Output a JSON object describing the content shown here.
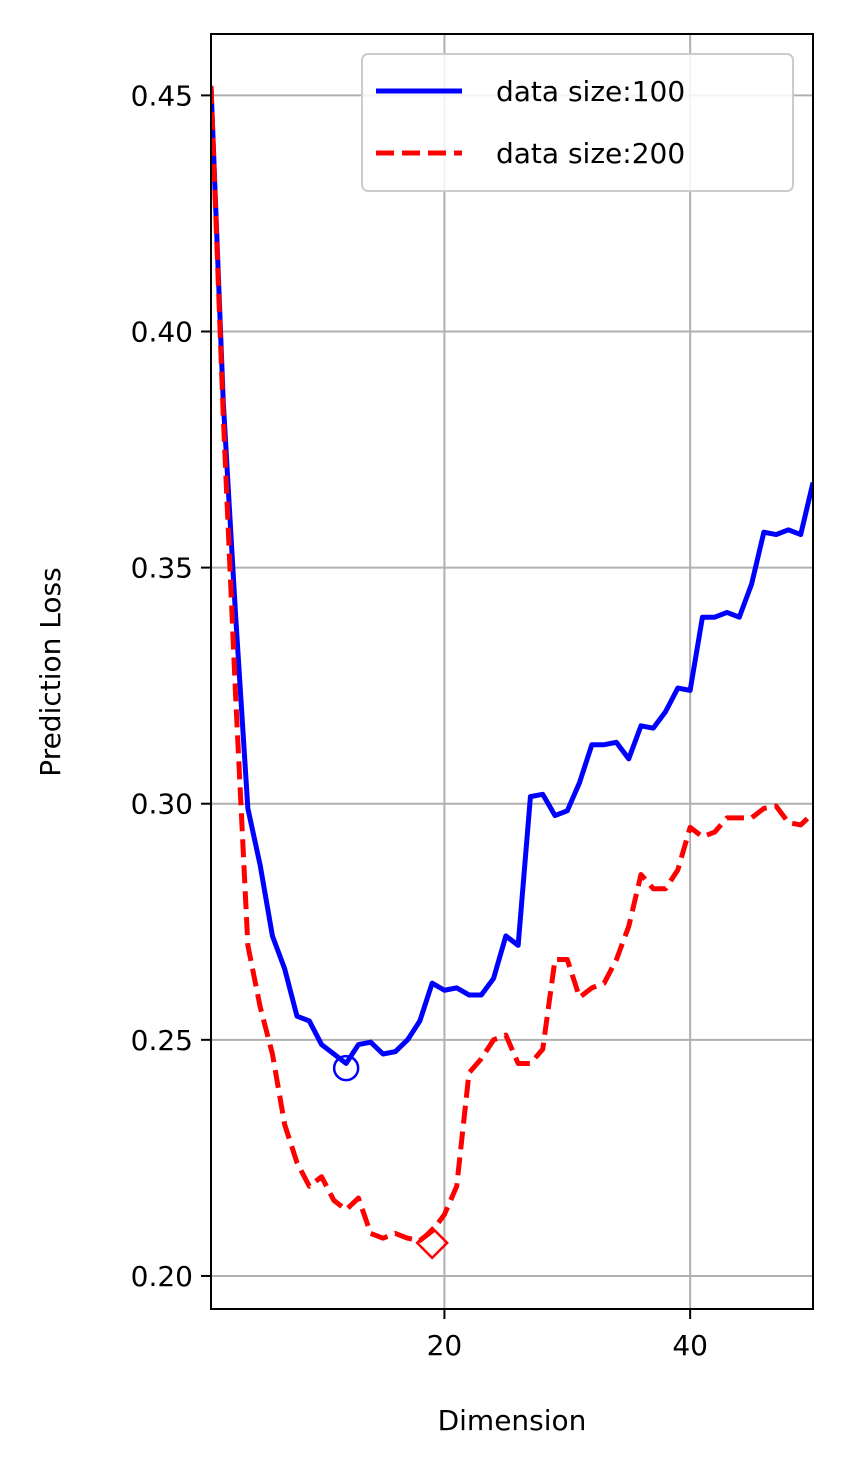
{
  "chart_data": {
    "type": "line",
    "xlabel": "Dimension",
    "ylabel": "Prediction Loss",
    "xlim": [
      1,
      50
    ],
    "ylim": [
      0.193,
      0.463
    ],
    "xticks": [
      20,
      40
    ],
    "xtick_labels": [
      "20",
      "40"
    ],
    "yticks": [
      0.2,
      0.25,
      0.3,
      0.35,
      0.4,
      0.45
    ],
    "ytick_labels": [
      "0.20",
      "0.25",
      "0.30",
      "0.35",
      "0.40",
      "0.45"
    ],
    "grid": true,
    "legend_position": "top-right",
    "series": [
      {
        "name": "data size:100",
        "color": "#0000ff",
        "style": "solid",
        "x": [
          1,
          2,
          3,
          4,
          5,
          6,
          7,
          8,
          9,
          10,
          11,
          12,
          13,
          14,
          15,
          16,
          17,
          18,
          19,
          20,
          21,
          22,
          23,
          24,
          25,
          26,
          27,
          28,
          29,
          30,
          31,
          32,
          33,
          34,
          35,
          36,
          37,
          38,
          39,
          40,
          41,
          42,
          43,
          44,
          45,
          46,
          47,
          48,
          49,
          50
        ],
        "y": [
          0.452,
          0.385,
          0.34,
          0.299,
          0.287,
          0.272,
          0.265,
          0.255,
          0.254,
          0.249,
          0.247,
          0.245,
          0.249,
          0.2495,
          0.247,
          0.2475,
          0.25,
          0.254,
          0.262,
          0.2605,
          0.261,
          0.2595,
          0.2595,
          0.263,
          0.272,
          0.27,
          0.3015,
          0.302,
          0.2975,
          0.2985,
          0.3045,
          0.3125,
          0.3125,
          0.313,
          0.3095,
          0.3165,
          0.316,
          0.3195,
          0.3245,
          0.324,
          0.3395,
          0.3395,
          0.3405,
          0.3395,
          0.3465,
          0.3575,
          0.357,
          0.358,
          0.357,
          0.368
        ],
        "marker": {
          "x": 12,
          "y": 0.244,
          "shape": "circle"
        }
      },
      {
        "name": "data size:200",
        "color": "#ff0000",
        "style": "dashed",
        "x": [
          1,
          2,
          3,
          4,
          5,
          6,
          7,
          8,
          9,
          10,
          11,
          12,
          13,
          14,
          15,
          16,
          17,
          18,
          19,
          20,
          21,
          22,
          23,
          24,
          25,
          26,
          27,
          28,
          29,
          30,
          31,
          32,
          33,
          34,
          35,
          36,
          37,
          38,
          39,
          40,
          41,
          42,
          43,
          44,
          45,
          46,
          47,
          48,
          49,
          50
        ],
        "y": [
          0.452,
          0.382,
          0.323,
          0.27,
          0.257,
          0.247,
          0.232,
          0.224,
          0.219,
          0.221,
          0.216,
          0.214,
          0.2165,
          0.209,
          0.208,
          0.209,
          0.208,
          0.2075,
          0.2095,
          0.213,
          0.219,
          0.243,
          0.246,
          0.25,
          0.251,
          0.245,
          0.245,
          0.248,
          0.267,
          0.267,
          0.259,
          0.261,
          0.262,
          0.267,
          0.274,
          0.285,
          0.282,
          0.282,
          0.286,
          0.295,
          0.293,
          0.294,
          0.297,
          0.297,
          0.297,
          0.299,
          0.2995,
          0.296,
          0.2955,
          0.298
        ],
        "marker": {
          "x": 19,
          "y": 0.207,
          "shape": "diamond"
        }
      }
    ]
  }
}
